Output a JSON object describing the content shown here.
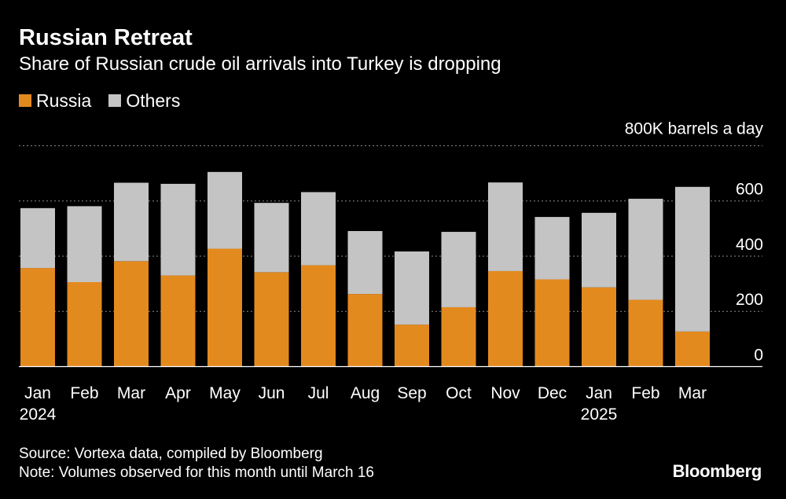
{
  "title": "Russian Retreat",
  "subtitle": "Share of Russian crude oil arrivals into Turkey is dropping",
  "legend": [
    {
      "label": "Russia",
      "color": "#E38A1F"
    },
    {
      "label": "Others",
      "color": "#C4C4C4"
    }
  ],
  "chart_data": {
    "type": "bar",
    "stacked": true,
    "title": "Russian Retreat",
    "ylabel": "800K barrels a day",
    "ylim": [
      0,
      800
    ],
    "yticks": [
      0,
      200,
      400,
      600
    ],
    "ytick_labels": [
      "0",
      "200",
      "400",
      "600"
    ],
    "top_label": "800K barrels a day",
    "categories": [
      "Jan",
      "Feb",
      "Mar",
      "Apr",
      "May",
      "Jun",
      "Jul",
      "Aug",
      "Sep",
      "Oct",
      "Nov",
      "Dec",
      "Jan",
      "Feb",
      "Mar"
    ],
    "year_labels": [
      "2024",
      "",
      "",
      "",
      "",
      "",
      "",
      "",
      "",
      "",
      "",
      "",
      "2025",
      "",
      ""
    ],
    "series": [
      {
        "name": "Russia",
        "color": "#E38A1F",
        "values": [
          357,
          306,
          382,
          330,
          427,
          342,
          367,
          263,
          152,
          215,
          346,
          316,
          287,
          242,
          127
        ]
      },
      {
        "name": "Others",
        "color": "#C4C4C4",
        "values": [
          217,
          275,
          284,
          332,
          278,
          251,
          265,
          228,
          265,
          273,
          321,
          226,
          270,
          366,
          524
        ]
      }
    ],
    "grid": true,
    "gridlines": [
      200,
      400,
      600,
      800
    ],
    "legend_position": "top-left"
  },
  "source_line1": "Source: Vortexa data, compiled by Bloomberg",
  "source_line2": "Note: Volumes observed for this month until March 16",
  "brand": "Bloomberg"
}
